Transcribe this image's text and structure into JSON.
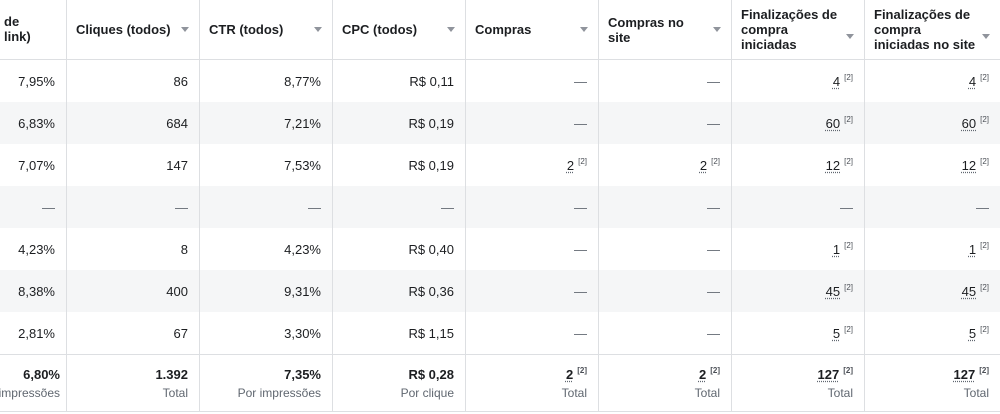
{
  "columns": [
    {
      "label": "de\nlink)"
    },
    {
      "label": "Cliques (todos)"
    },
    {
      "label": "CTR (todos)"
    },
    {
      "label": "CPC (todos)"
    },
    {
      "label": "Compras"
    },
    {
      "label": "Compras no site"
    },
    {
      "label": "Finalizações de compra iniciadas"
    },
    {
      "label": "Finalizações de compra iniciadas no site"
    }
  ],
  "rows": [
    [
      "7,95%",
      "86",
      "8,77%",
      "R$ 0,11",
      "—",
      "—",
      "4",
      "4"
    ],
    [
      "6,83%",
      "684",
      "7,21%",
      "R$ 0,19",
      "—",
      "—",
      "60",
      "60"
    ],
    [
      "7,07%",
      "147",
      "7,53%",
      "R$ 0,19",
      "2",
      "2",
      "12",
      "12"
    ],
    [
      "—",
      "—",
      "—",
      "—",
      "—",
      "—",
      "—",
      "—"
    ],
    [
      "4,23%",
      "8",
      "4,23%",
      "R$ 0,40",
      "—",
      "—",
      "1",
      "1"
    ],
    [
      "8,38%",
      "400",
      "9,31%",
      "R$ 0,36",
      "—",
      "—",
      "45",
      "45"
    ],
    [
      "2,81%",
      "67",
      "3,30%",
      "R$ 1,15",
      "—",
      "—",
      "5",
      "5"
    ]
  ],
  "attribution_marker": "[2]",
  "totals": [
    {
      "value": "6,80%",
      "sub": "impressões"
    },
    {
      "value": "1.392",
      "sub": "Total"
    },
    {
      "value": "7,35%",
      "sub": "Por impressões"
    },
    {
      "value": "R$ 0,28",
      "sub": "Por clique"
    },
    {
      "value": "2",
      "sub": "Total"
    },
    {
      "value": "2",
      "sub": "Total"
    },
    {
      "value": "127",
      "sub": "Total"
    },
    {
      "value": "127",
      "sub": "Total"
    }
  ]
}
